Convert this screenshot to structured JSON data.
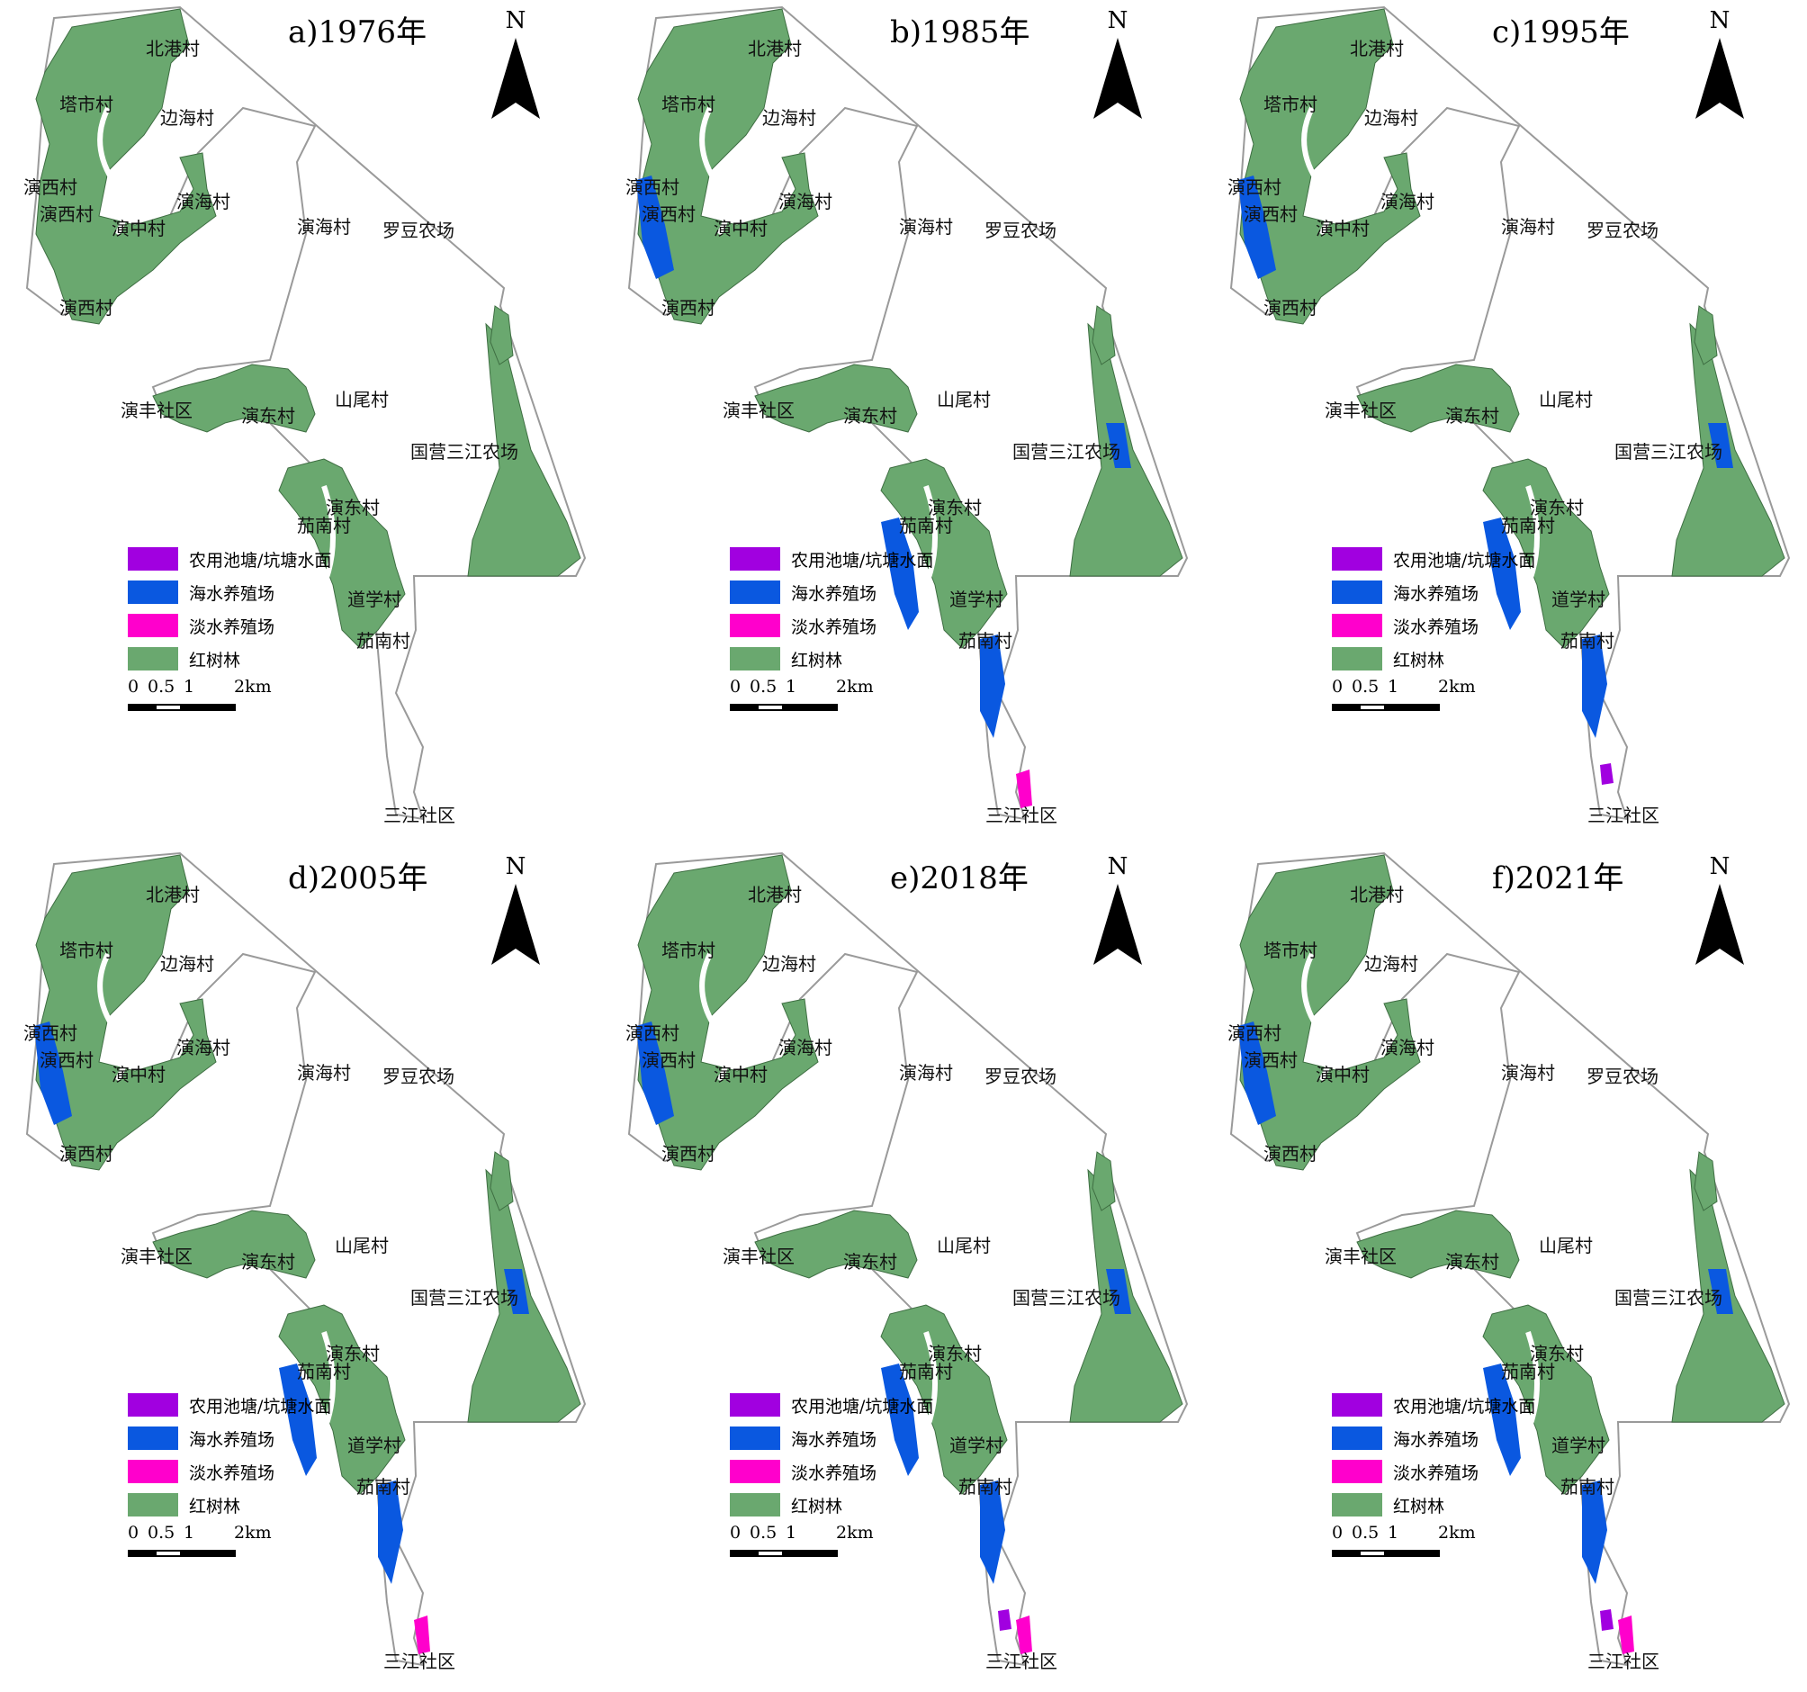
{
  "colors": {
    "mangrove": "#6aa86f",
    "farm_pond": "#a100e0",
    "sea_aquaculture": "#0a58e0",
    "fresh_aquaculture": "#ff00cc",
    "boundary": "#9a9a9a"
  },
  "legend": [
    {
      "key": "farm_pond",
      "label": "农用池塘/坑塘水面",
      "color": "#a100e0"
    },
    {
      "key": "sea_aquaculture",
      "label": "海水养殖场",
      "color": "#0a58e0"
    },
    {
      "key": "fresh_aquaculture",
      "label": "淡水养殖场",
      "color": "#ff00cc"
    },
    {
      "key": "mangrove",
      "label": "红树林",
      "color": "#6aa86f"
    }
  ],
  "north_label": "N",
  "scale_ticks": [
    "0",
    "0.5",
    "1",
    "2km"
  ],
  "place_names": [
    {
      "name": "北港村"
    },
    {
      "name": "塔市村"
    },
    {
      "name": "边海村"
    },
    {
      "name": "演西村"
    },
    {
      "name": "演海村"
    },
    {
      "name": "演西村"
    },
    {
      "name": "演中村"
    },
    {
      "name": "演海村"
    },
    {
      "name": "罗豆农场"
    },
    {
      "name": "演西村"
    },
    {
      "name": "演丰社区"
    },
    {
      "name": "演东村"
    },
    {
      "name": "山尾村"
    },
    {
      "name": "国营三江农场"
    },
    {
      "name": "演东村"
    },
    {
      "name": "茄南村"
    },
    {
      "name": "道学村"
    },
    {
      "name": "茄南村"
    },
    {
      "name": "三江社区"
    }
  ],
  "panels": [
    {
      "id": "a",
      "title": "a)1976年",
      "aquaculture": []
    },
    {
      "id": "b",
      "title": "b)1985年",
      "aquaculture": [
        "sea_aquaculture",
        "fresh_aquaculture"
      ]
    },
    {
      "id": "c",
      "title": "c)1995年",
      "aquaculture": [
        "sea_aquaculture",
        "farm_pond"
      ]
    },
    {
      "id": "d",
      "title": "d)2005年",
      "aquaculture": [
        "sea_aquaculture",
        "fresh_aquaculture"
      ]
    },
    {
      "id": "e",
      "title": "e)2018年",
      "aquaculture": [
        "sea_aquaculture",
        "fresh_aquaculture",
        "farm_pond"
      ]
    },
    {
      "id": "f",
      "title": "f)2021年",
      "aquaculture": [
        "sea_aquaculture",
        "fresh_aquaculture",
        "farm_pond"
      ]
    }
  ]
}
